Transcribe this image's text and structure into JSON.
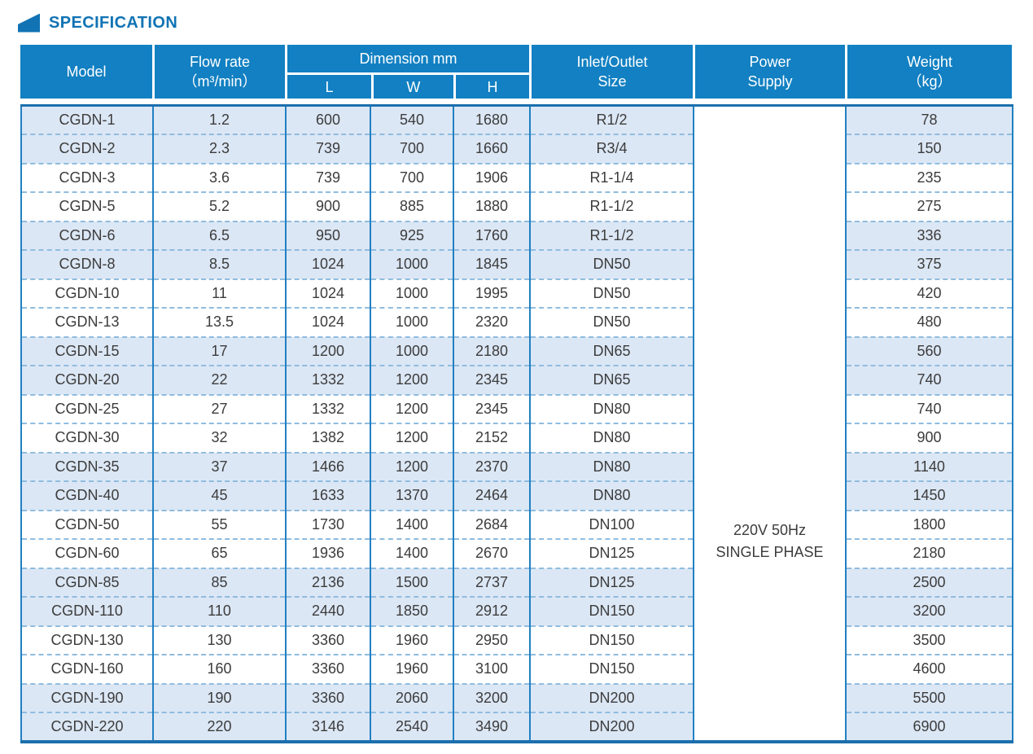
{
  "page": {
    "title": "SPECIFICATION"
  },
  "colors": {
    "header_bg": "#1280c2",
    "border_blue": "#2180c2",
    "rule_blue": "#1c6fad",
    "row_shade": "#dce7f5",
    "dashed_line": "#8fbcdf",
    "title_blue": "#1173b4"
  },
  "table": {
    "columns": {
      "model": "Model",
      "flow_rate_line1": "Flow rate",
      "flow_rate_line2": "（m³/min）",
      "dimension": "Dimension mm",
      "dim_l": "L",
      "dim_w": "W",
      "dim_h": "H",
      "inlet_line1": "Inlet/Outlet",
      "inlet_line2": "Size",
      "power_line1": "Power",
      "power_line2": "Supply",
      "weight_line1": "Weight",
      "weight_line2": "（kg）"
    },
    "power_supply": [
      "220V 50Hz",
      "SINGLE PHASE"
    ],
    "rows": [
      {
        "model": "CGDN-1",
        "flow": "1.2",
        "l": "600",
        "w": "540",
        "h": "1680",
        "inlet": "R1/2",
        "weight": "78"
      },
      {
        "model": "CGDN-2",
        "flow": "2.3",
        "l": "739",
        "w": "700",
        "h": "1660",
        "inlet": "R3/4",
        "weight": "150"
      },
      {
        "model": "CGDN-3",
        "flow": "3.6",
        "l": "739",
        "w": "700",
        "h": "1906",
        "inlet": "R1-1/4",
        "weight": "235"
      },
      {
        "model": "CGDN-5",
        "flow": "5.2",
        "l": "900",
        "w": "885",
        "h": "1880",
        "inlet": "R1-1/2",
        "weight": "275"
      },
      {
        "model": "CGDN-6",
        "flow": "6.5",
        "l": "950",
        "w": "925",
        "h": "1760",
        "inlet": "R1-1/2",
        "weight": "336"
      },
      {
        "model": "CGDN-8",
        "flow": "8.5",
        "l": "1024",
        "w": "1000",
        "h": "1845",
        "inlet": "DN50",
        "weight": "375"
      },
      {
        "model": "CGDN-10",
        "flow": "11",
        "l": "1024",
        "w": "1000",
        "h": "1995",
        "inlet": "DN50",
        "weight": "420"
      },
      {
        "model": "CGDN-13",
        "flow": "13.5",
        "l": "1024",
        "w": "1000",
        "h": "2320",
        "inlet": "DN50",
        "weight": "480"
      },
      {
        "model": "CGDN-15",
        "flow": "17",
        "l": "1200",
        "w": "1000",
        "h": "2180",
        "inlet": "DN65",
        "weight": "560"
      },
      {
        "model": "CGDN-20",
        "flow": "22",
        "l": "1332",
        "w": "1200",
        "h": "2345",
        "inlet": "DN65",
        "weight": "740"
      },
      {
        "model": "CGDN-25",
        "flow": "27",
        "l": "1332",
        "w": "1200",
        "h": "2345",
        "inlet": "DN80",
        "weight": "740"
      },
      {
        "model": "CGDN-30",
        "flow": "32",
        "l": "1382",
        "w": "1200",
        "h": "2152",
        "inlet": "DN80",
        "weight": "900"
      },
      {
        "model": "CGDN-35",
        "flow": "37",
        "l": "1466",
        "w": "1200",
        "h": "2370",
        "inlet": "DN80",
        "weight": "1140"
      },
      {
        "model": "CGDN-40",
        "flow": "45",
        "l": "1633",
        "w": "1370",
        "h": "2464",
        "inlet": "DN80",
        "weight": "1450"
      },
      {
        "model": "CGDN-50",
        "flow": "55",
        "l": "1730",
        "w": "1400",
        "h": "2684",
        "inlet": "DN100",
        "weight": "1800"
      },
      {
        "model": "CGDN-60",
        "flow": "65",
        "l": "1936",
        "w": "1400",
        "h": "2670",
        "inlet": "DN125",
        "weight": "2180"
      },
      {
        "model": "CGDN-85",
        "flow": "85",
        "l": "2136",
        "w": "1500",
        "h": "2737",
        "inlet": "DN125",
        "weight": "2500"
      },
      {
        "model": "CGDN-110",
        "flow": "110",
        "l": "2440",
        "w": "1850",
        "h": "2912",
        "inlet": "DN150",
        "weight": "3200"
      },
      {
        "model": "CGDN-130",
        "flow": "130",
        "l": "3360",
        "w": "1960",
        "h": "2950",
        "inlet": "DN150",
        "weight": "3500"
      },
      {
        "model": "CGDN-160",
        "flow": "160",
        "l": "3360",
        "w": "1960",
        "h": "3100",
        "inlet": "DN150",
        "weight": "4600"
      },
      {
        "model": "CGDN-190",
        "flow": "190",
        "l": "3360",
        "w": "2060",
        "h": "3200",
        "inlet": "DN200",
        "weight": "5500"
      },
      {
        "model": "CGDN-220",
        "flow": "220",
        "l": "3146",
        "w": "2540",
        "h": "3490",
        "inlet": "DN200",
        "weight": "6900"
      }
    ]
  }
}
